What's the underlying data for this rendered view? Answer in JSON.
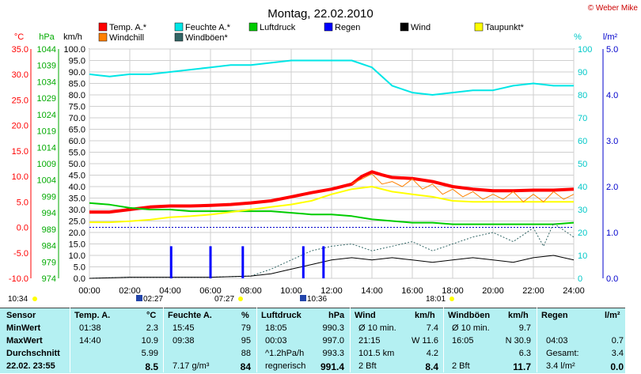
{
  "chart_data": {
    "type": "line",
    "title": "Montag, 22.02.2010",
    "copyright": "© Weber Mike",
    "x_ticks": [
      "00:00",
      "02:00",
      "04:00",
      "06:00",
      "08:00",
      "10:00",
      "12:00",
      "14:00",
      "16:00",
      "18:00",
      "20:00",
      "22:00",
      "24:00"
    ],
    "x_range": [
      0,
      24
    ],
    "axes": {
      "temp": {
        "unit": "°C",
        "range": [
          -10,
          35
        ],
        "ticks": [
          "35.0",
          "30.0",
          "25.0",
          "20.0",
          "15.0",
          "10.0",
          "5.0",
          "0.0",
          "-5.0",
          "-10.0"
        ]
      },
      "pressure": {
        "unit": "hPa",
        "range": [
          974,
          1044
        ],
        "ticks": [
          "1044",
          "1039",
          "1034",
          "1029",
          "1024",
          "1019",
          "1014",
          "1009",
          "1004",
          "999",
          "994",
          "989",
          "984",
          "979",
          "974"
        ]
      },
      "wind": {
        "unit": "km/h",
        "range": [
          0,
          100
        ],
        "ticks": [
          "100.0",
          "95.0",
          "90.0",
          "85.0",
          "80.0",
          "75.0",
          "70.0",
          "65.0",
          "60.0",
          "55.0",
          "50.0",
          "45.0",
          "40.0",
          "35.0",
          "30.0",
          "25.0",
          "20.0",
          "15.0",
          "10.0",
          "5.0",
          "0.0"
        ]
      },
      "humidity": {
        "unit": "%",
        "range": [
          0,
          100
        ],
        "ticks": [
          "100",
          "90",
          "80",
          "70",
          "60",
          "50",
          "40",
          "30",
          "20",
          "10",
          "0"
        ]
      },
      "rain": {
        "unit": "l/m²",
        "range": [
          0,
          5
        ],
        "ticks": [
          "5.0",
          "4.0",
          "3.0",
          "2.0",
          "1.0",
          "0.0"
        ]
      }
    },
    "legend": [
      {
        "name": "Temp. A.*",
        "color": "#ff0000"
      },
      {
        "name": "Feuchte A.*",
        "color": "#00e6e6"
      },
      {
        "name": "Luftdruck",
        "color": "#00cc00"
      },
      {
        "name": "Regen",
        "color": "#0000ff"
      },
      {
        "name": "Wind",
        "color": "#000000"
      },
      {
        "name": "Taupunkt*",
        "color": "#ffff00"
      },
      {
        "name": "Windchill",
        "color": "#ff8000"
      },
      {
        "name": "Windböen*",
        "color": "#336666"
      }
    ],
    "series": [
      {
        "name": "Temp. A.*",
        "axis": "temp",
        "color": "#ff0000",
        "x": [
          0,
          1,
          2,
          3,
          4,
          5,
          6,
          7,
          8,
          9,
          10,
          11,
          12,
          13,
          13.5,
          14,
          14.5,
          15,
          16,
          17,
          18,
          19,
          20,
          21,
          22,
          23,
          24
        ],
        "y": [
          3.0,
          3.0,
          3.5,
          4.0,
          4.2,
          4.2,
          4.3,
          4.5,
          4.8,
          5.2,
          6.0,
          6.8,
          7.5,
          8.5,
          10.0,
          10.9,
          10.3,
          9.8,
          9.6,
          9.0,
          8.0,
          7.5,
          7.2,
          7.2,
          7.3,
          7.3,
          7.5
        ]
      },
      {
        "name": "Feuchte A.*",
        "axis": "humidity",
        "color": "#00e6e6",
        "x": [
          0,
          1,
          2,
          3,
          4,
          5,
          6,
          7,
          8,
          9,
          10,
          11,
          12,
          13,
          14,
          15,
          16,
          17,
          18,
          19,
          20,
          21,
          22,
          23,
          24
        ],
        "y": [
          89,
          88,
          89,
          89,
          90,
          91,
          92,
          93,
          93,
          94,
          95,
          95,
          95,
          95,
          92,
          84,
          81,
          80,
          81,
          82,
          82,
          84,
          85,
          84,
          84
        ]
      },
      {
        "name": "Luftdruck",
        "axis": "pressure",
        "color": "#00cc00",
        "x": [
          0,
          1,
          2,
          3,
          4,
          5,
          6,
          7,
          8,
          9,
          10,
          11,
          12,
          13,
          14,
          15,
          16,
          17,
          18,
          19,
          20,
          21,
          22,
          23,
          24
        ],
        "y": [
          997.0,
          996.5,
          995.5,
          995.0,
          995.0,
          994.5,
          994.5,
          994.5,
          994.5,
          994.5,
          994.0,
          993.5,
          993.5,
          993.0,
          992.0,
          991.5,
          991.0,
          991.0,
          990.5,
          990.5,
          990.5,
          990.5,
          990.5,
          990.5,
          991.0
        ]
      },
      {
        "name": "Taupunkt*",
        "axis": "temp",
        "color": "#ffff00",
        "x": [
          0,
          1,
          2,
          3,
          4,
          5,
          6,
          7,
          8,
          9,
          10,
          11,
          12,
          13,
          14,
          15,
          16,
          17,
          18,
          19,
          20,
          21,
          22,
          23,
          24
        ],
        "y": [
          1.0,
          1.0,
          1.2,
          1.5,
          2.0,
          2.2,
          2.5,
          3.0,
          3.5,
          4.0,
          4.5,
          5.2,
          6.5,
          7.5,
          8.0,
          7.0,
          6.5,
          6.0,
          5.2,
          5.0,
          5.0,
          5.0,
          5.0,
          5.0,
          5.0
        ]
      },
      {
        "name": "Windchill",
        "axis": "temp",
        "color": "#ff8000",
        "x": [
          13,
          13.5,
          14,
          14.5,
          15,
          15.5,
          16,
          16.5,
          17,
          17.5,
          18,
          18.5,
          19,
          19.5,
          20,
          20.5,
          21,
          21.5,
          22,
          22.5,
          23,
          23.5,
          24
        ],
        "y": [
          8.5,
          9.5,
          10.5,
          8.5,
          9.0,
          8.0,
          9.5,
          7.5,
          8.5,
          6.5,
          7.5,
          6.0,
          7.0,
          5.5,
          6.5,
          5.5,
          7.0,
          5.0,
          6.5,
          5.0,
          7.0,
          5.5,
          6.5
        ]
      },
      {
        "name": "Windböen*",
        "axis": "wind",
        "color": "#336666",
        "x": [
          0,
          2,
          4,
          6,
          8,
          9,
          10,
          11,
          12,
          13,
          14,
          15,
          16,
          17,
          18,
          19,
          20,
          21,
          22,
          22.5,
          23,
          24
        ],
        "y": [
          0,
          0.5,
          0.5,
          0.5,
          1,
          4,
          8,
          12,
          14,
          15,
          12,
          14,
          16,
          12,
          15,
          18,
          20,
          16,
          22,
          14,
          24,
          18
        ]
      },
      {
        "name": "Wind",
        "axis": "wind",
        "color": "#000000",
        "x": [
          0,
          2,
          4,
          6,
          8,
          9,
          10,
          11,
          12,
          13,
          14,
          15,
          16,
          17,
          18,
          19,
          20,
          21,
          22,
          23,
          24
        ],
        "y": [
          0,
          0.5,
          0.5,
          0.5,
          1,
          2,
          4,
          6,
          8,
          9,
          8,
          9,
          8,
          7,
          8,
          9,
          8,
          7,
          9,
          10,
          8
        ]
      },
      {
        "name": "Regen",
        "axis": "rain",
        "color": "#0000ff",
        "type": "bar",
        "x": [
          4.05,
          6.0,
          7.6,
          10.6,
          11.6
        ],
        "y": [
          0.7,
          0.7,
          0.7,
          0.7,
          0.7
        ]
      }
    ],
    "freeze_line": {
      "axis": "temp",
      "value": 0.0
    },
    "markers": {
      "sunrise": "07:27",
      "sunset": "18:01",
      "moonrise": "10:36",
      "moonset": "02:27",
      "day_start": "10:34"
    }
  },
  "table": {
    "headers": [
      "Sensor",
      "Temp. A.",
      "°C",
      "Feuchte A.",
      "%",
      "Luftdruck",
      "hPa",
      "Wind",
      "km/h",
      "Windböen",
      "km/h",
      "Regen",
      "l/m²"
    ],
    "rows": [
      {
        "label": "MinWert",
        "temp_time": "01:38",
        "temp": "2.3",
        "hum_time": "15:45",
        "hum": "79",
        "press_time": "18:05",
        "press": "990.3",
        "wind_text": "Ø 10 min.",
        "wind": "7.4",
        "gust_text": "Ø 10 min.",
        "gust": "9.7",
        "rain_text": "",
        "rain": ""
      },
      {
        "label": "MaxWert",
        "temp_time": "14:40",
        "temp": "10.9",
        "hum_time": "09:38",
        "hum": "95",
        "press_time": "00:03",
        "press": "997.0",
        "wind_text": "21:15",
        "wind": "W 11.6",
        "gust_text": "16:05",
        "gust": "N 30.9",
        "rain_text": "04:03",
        "rain": "0.7"
      },
      {
        "label": "Durchschnitt",
        "temp_time": "",
        "temp": "5.99",
        "hum_time": "",
        "hum": "88",
        "press_time": "^1.2hPa/h",
        "press": "993.3",
        "wind_text": "101.5 km",
        "wind": "4.2",
        "gust_text": "",
        "gust": "6.3",
        "rain_text": "Gesamt:",
        "rain": "3.4"
      },
      {
        "label": "22.02.  23:55",
        "temp_time": "",
        "temp": "8.5",
        "hum_time": "7.17 g/m³",
        "hum": "84",
        "press_time": "regnerisch",
        "press": "991.4",
        "wind_text": "2 Bft",
        "wind": "8.4",
        "gust_text": "2 Bft",
        "gust": "11.7",
        "rain_text": "3.4 l/m²",
        "rain": "0.0"
      }
    ]
  }
}
